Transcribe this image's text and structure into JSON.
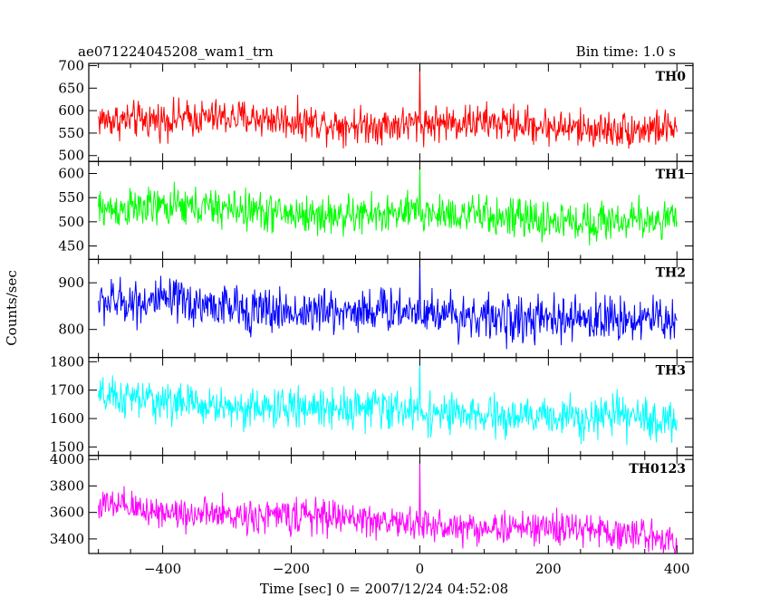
{
  "header": {
    "title": "ae071224045208_wam1_trn",
    "bin_time": "Bin time: 1.0 s"
  },
  "chart_data": {
    "type": "line",
    "title": "ae071224045208_wam1_trn",
    "subtitle": "Bin time: 1.0 s",
    "xlabel": "Time [sec] 0 = 2007/12/24 04:52:08",
    "ylabel": "Counts/sec",
    "xlim": [
      -515,
      425
    ],
    "x_data_range": [
      -500,
      400
    ],
    "x_step": 1.0,
    "xticks": [
      -400,
      -200,
      0,
      200,
      400
    ],
    "xtick_labels": [
      "−400",
      "−200",
      "0",
      "200",
      "400"
    ],
    "grid": false,
    "legend": "none",
    "panels": [
      {
        "label": "TH0",
        "color": "#ff0000",
        "ylim": [
          487,
          705
        ],
        "yticks": [
          500,
          550,
          600,
          650,
          700
        ],
        "ytick_labels": [
          "500",
          "550",
          "600",
          "650",
          "700"
        ],
        "mean_start": 585,
        "mean_end": 560,
        "noise_amplitude": 35,
        "spikes": [
          {
            "x": 0,
            "y": 700
          }
        ]
      },
      {
        "label": "TH1",
        "color": "#00ff00",
        "ylim": [
          422,
          625
        ],
        "yticks": [
          450,
          500,
          550,
          600
        ],
        "ytick_labels": [
          "450",
          "500",
          "550",
          "600"
        ],
        "mean_start": 530,
        "mean_end": 500,
        "noise_amplitude": 35,
        "spikes": [
          {
            "x": 0,
            "y": 615
          }
        ]
      },
      {
        "label": "TH2",
        "color": "#0000ff",
        "ylim": [
          740,
          950
        ],
        "yticks": [
          800,
          900
        ],
        "ytick_labels": [
          "800",
          "900"
        ],
        "mean_start": 858,
        "mean_end": 815,
        "noise_amplitude": 42,
        "spikes": [
          {
            "x": 0,
            "y": 948
          }
        ]
      },
      {
        "label": "TH3",
        "color": "#00ffff",
        "ylim": [
          1470,
          1815
        ],
        "yticks": [
          1500,
          1600,
          1700,
          1800
        ],
        "ytick_labels": [
          "1500",
          "1600",
          "1700",
          "1800"
        ],
        "mean_start": 1665,
        "mean_end": 1590,
        "noise_amplitude": 60,
        "spikes": [
          {
            "x": 0,
            "y": 1810
          }
        ]
      },
      {
        "label": "TH0123",
        "color": "#ff00ff",
        "ylim": [
          3290,
          4030
        ],
        "yticks": [
          3400,
          3600,
          3800,
          4000
        ],
        "ytick_labels": [
          "3400",
          "3600",
          "3800",
          "4000"
        ],
        "mean_start": 3640,
        "mean_end": 3420,
        "noise_amplitude": 110,
        "spikes": [
          {
            "x": 0,
            "y": 4000
          }
        ]
      }
    ]
  }
}
